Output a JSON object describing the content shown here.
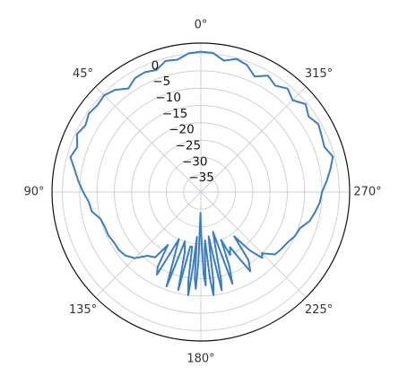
{
  "chart_data": {
    "type": "line",
    "projection": "polar",
    "theta_direction": "counterclockwise",
    "theta_zero_location": "top",
    "grid": true,
    "angle_ticks": [
      "0°",
      "45°",
      "90°",
      "135°",
      "180°",
      "225°",
      "270°",
      "315°"
    ],
    "angle_tick_degrees": [
      0,
      45,
      90,
      135,
      180,
      225,
      270,
      315
    ],
    "radial_ticks": [
      "0",
      "−5",
      "−10",
      "−15",
      "−20",
      "−25",
      "−30",
      "−35"
    ],
    "radial_tick_values": [
      0,
      -5,
      -10,
      -15,
      -20,
      -25,
      -30,
      -35
    ],
    "rlim": [
      -40,
      3
    ],
    "line_color": "#3a7ebf",
    "series": [
      {
        "theta_deg": [
          0,
          5,
          10,
          15,
          20,
          25,
          30,
          35,
          40,
          45,
          50,
          55,
          60,
          65,
          70,
          75,
          80,
          85,
          90,
          95,
          100,
          105,
          110,
          115,
          120,
          125,
          130,
          135,
          140,
          145,
          148,
          150,
          152,
          155,
          158,
          160,
          162,
          165,
          167,
          169,
          171,
          172,
          173,
          174,
          175,
          176,
          177,
          178,
          179,
          180,
          181,
          182,
          183,
          184,
          185,
          186,
          187,
          188,
          189,
          190,
          191,
          192,
          193,
          195,
          197,
          199,
          201,
          203,
          205,
          208,
          210,
          212,
          215,
          217,
          220,
          223,
          225,
          230,
          235,
          240,
          245,
          250,
          255,
          260,
          265,
          270,
          275,
          280,
          285,
          290,
          295,
          300,
          305,
          310,
          315,
          320,
          325,
          330,
          335,
          340,
          345,
          350,
          355,
          360
        ],
        "r_db": [
          0.5,
          0.2,
          -1.2,
          -0.8,
          -2.5,
          -1.8,
          -2,
          -3.5,
          -1.5,
          -0.5,
          -1,
          -0.5,
          -1.5,
          -0.5,
          -2,
          -1,
          -3,
          -4.5,
          -6,
          -7.5,
          -8,
          -10,
          -10.5,
          -10.5,
          -11,
          -11,
          -11.5,
          -13,
          -16,
          -17,
          -22,
          -15,
          -13,
          -25,
          -19,
          -11,
          -25,
          -22,
          -11,
          -24,
          -24,
          -14,
          -10,
          -18,
          -27,
          -15,
          -12,
          -20,
          -34,
          -30,
          -25,
          -16,
          -13,
          -24,
          -26,
          -15,
          -10,
          -14,
          -24,
          -27,
          -21,
          -11,
          -14,
          -24,
          -28,
          -12,
          -17,
          -25,
          -20,
          -22,
          -18,
          -13,
          -16,
          -24,
          -18,
          -14,
          -15,
          -12,
          -11.5,
          -11,
          -10,
          -9.5,
          -7.5,
          -6.5,
          -5.5,
          -5,
          -3.5,
          -2,
          -0.5,
          -2,
          -1.5,
          -0.8,
          -2,
          -0.5,
          -2.5,
          -1,
          -2.5,
          -1.2,
          -3.2,
          -1,
          -0.2,
          -1.5,
          0.3,
          0.5
        ]
      }
    ]
  }
}
